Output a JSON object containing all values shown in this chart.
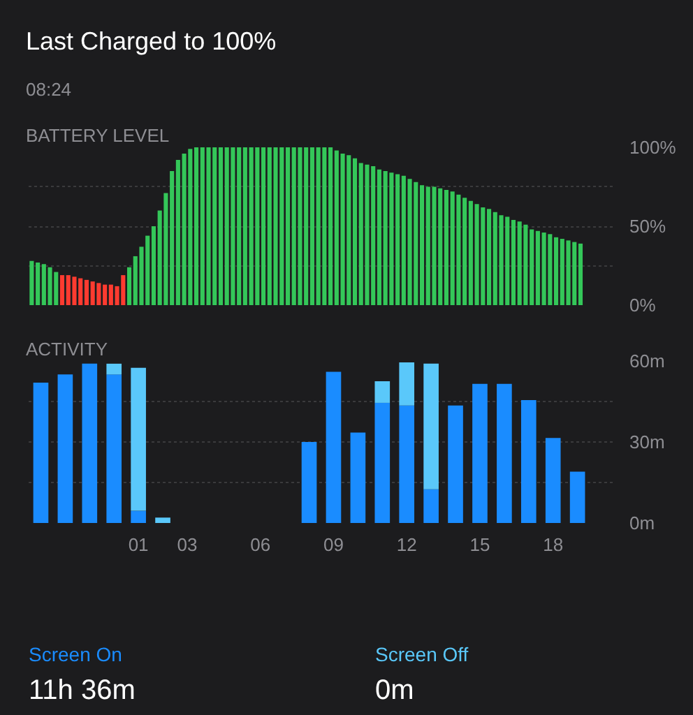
{
  "chart_data": [
    {
      "type": "bar",
      "title": "BATTERY LEVEL",
      "annotations": [
        "Last Charged to 100%",
        "08:24"
      ],
      "categories": [
        null,
        null,
        null,
        null,
        null,
        null,
        null,
        null,
        null,
        null,
        null,
        null,
        null,
        null,
        null,
        null,
        null,
        null,
        null,
        null,
        null,
        null,
        null,
        null,
        null,
        null,
        null,
        null,
        null,
        null,
        null,
        null,
        null,
        null,
        null,
        null,
        null,
        null,
        null,
        null,
        null,
        null,
        null,
        null,
        null,
        null,
        null,
        null,
        null,
        null,
        null,
        null,
        null,
        null,
        null,
        null,
        null,
        null,
        null,
        null,
        null,
        null,
        null,
        null,
        null,
        null,
        null,
        null,
        null,
        null,
        null,
        null,
        null,
        null,
        null,
        null,
        null,
        null,
        null,
        null,
        null,
        null,
        null,
        null,
        null,
        null,
        null,
        null,
        null,
        null,
        null,
        null,
        null,
        null,
        null,
        null
      ],
      "values": [
        28,
        27,
        26,
        24,
        21,
        19,
        19,
        18,
        17,
        16,
        15,
        14,
        13,
        13,
        12,
        19,
        24,
        31,
        37,
        44,
        50,
        60,
        71,
        85,
        92,
        96,
        99,
        100,
        100,
        100,
        100,
        100,
        100,
        100,
        100,
        100,
        100,
        100,
        100,
        100,
        100,
        100,
        100,
        100,
        100,
        100,
        100,
        100,
        100,
        100,
        98,
        96,
        95,
        93,
        90,
        89,
        88,
        86,
        85,
        84,
        83,
        82,
        80,
        78,
        76,
        75,
        75,
        74,
        73,
        72,
        70,
        68,
        66,
        64,
        62,
        61,
        59,
        57,
        56,
        54,
        53,
        51,
        48,
        47,
        46,
        45,
        43,
        42,
        41,
        40,
        39,
        null,
        null,
        null,
        null,
        null
      ],
      "colors": [
        "#34c759",
        "#34c759",
        "#34c759",
        "#34c759",
        "#34c759",
        "#ff3b30",
        "#ff3b30",
        "#ff3b30",
        "#ff3b30",
        "#ff3b30",
        "#ff3b30",
        "#ff3b30",
        "#ff3b30",
        "#ff3b30",
        "#ff3b30",
        "#ff3b30",
        "#34c759",
        "#34c759",
        "#34c759",
        "#34c759",
        "#34c759",
        "#34c759",
        "#34c759",
        "#34c759",
        "#34c759",
        "#34c759",
        "#34c759",
        "#34c759",
        "#34c759",
        "#34c759",
        "#34c759",
        "#34c759",
        "#34c759",
        "#34c759",
        "#34c759",
        "#34c759",
        "#34c759",
        "#34c759",
        "#34c759",
        "#34c759",
        "#34c759",
        "#34c759",
        "#34c759",
        "#34c759",
        "#34c759",
        "#34c759",
        "#34c759",
        "#34c759",
        "#34c759",
        "#34c759",
        "#34c759",
        "#34c759",
        "#34c759",
        "#34c759",
        "#34c759",
        "#34c759",
        "#34c759",
        "#34c759",
        "#34c759",
        "#34c759",
        "#34c759",
        "#34c759",
        "#34c759",
        "#34c759",
        "#34c759",
        "#34c759",
        "#34c759",
        "#34c759",
        "#34c759",
        "#34c759",
        "#34c759",
        "#34c759",
        "#34c759",
        "#34c759",
        "#34c759",
        "#34c759",
        "#34c759",
        "#34c759",
        "#34c759",
        "#34c759",
        "#34c759",
        "#34c759",
        "#34c759",
        "#34c759",
        "#34c759",
        "#34c759",
        "#34c759",
        "#34c759",
        "#34c759",
        "#34c759",
        "#34c759",
        null,
        null,
        null,
        null,
        null
      ],
      "ylim": [
        0,
        100
      ],
      "yticks": [
        {
          "value": 0,
          "label": "0%"
        },
        {
          "value": 25,
          "label": null
        },
        {
          "value": 50,
          "label": "50%"
        },
        {
          "value": 75,
          "label": null
        },
        {
          "value": 100,
          "label": "100%"
        }
      ],
      "tick_labels": "y",
      "grid": "y"
    },
    {
      "type": "bar",
      "title": "ACTIVITY",
      "stacked": true,
      "legend": "bottom",
      "annotations": [
        "11h 36m",
        "0m"
      ],
      "categories": [
        null,
        null,
        null,
        null,
        "01",
        null,
        "03",
        null,
        null,
        "06",
        null,
        null,
        "09",
        null,
        null,
        "12",
        null,
        null,
        "15",
        null,
        null,
        "18",
        null,
        null
      ],
      "series": [
        {
          "name": "Screen On",
          "color": "#1a8cff",
          "values": [
            52,
            55,
            59,
            55,
            4.5,
            null,
            null,
            null,
            null,
            null,
            null,
            30,
            56,
            33.5,
            44.5,
            43.5,
            12.5,
            43.5,
            51.5,
            51.5,
            45.5,
            31.5,
            19,
            null
          ]
        },
        {
          "name": "Screen Off",
          "color": "#5ac8fa",
          "values": [
            null,
            null,
            null,
            4,
            53,
            2,
            null,
            null,
            null,
            null,
            null,
            null,
            null,
            null,
            8,
            16,
            46.5,
            null,
            null,
            null,
            null,
            null,
            null,
            null
          ]
        }
      ],
      "ylim": [
        0,
        60
      ],
      "yticks": [
        {
          "value": 0,
          "label": "0m"
        },
        {
          "value": 15,
          "label": null
        },
        {
          "value": 30,
          "label": "30m"
        },
        {
          "value": 45,
          "label": null
        },
        {
          "value": 60,
          "label": "60m"
        }
      ],
      "grid": "y"
    }
  ]
}
